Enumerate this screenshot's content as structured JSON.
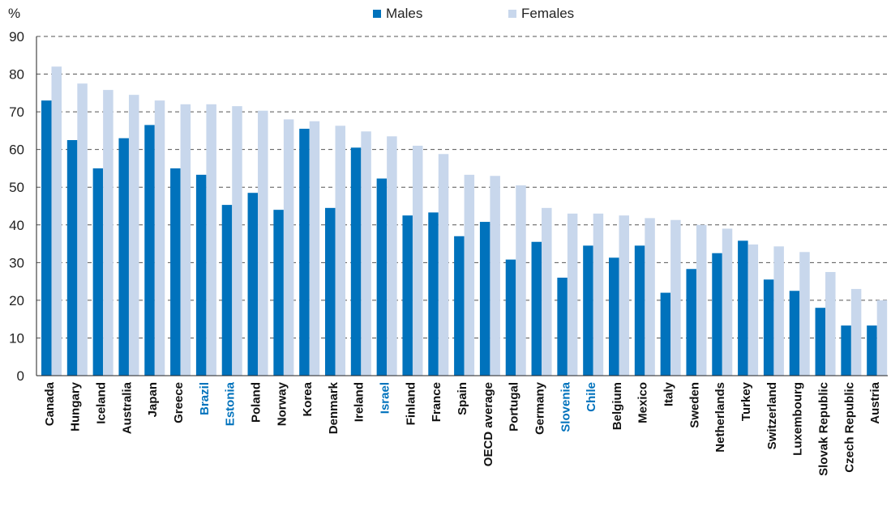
{
  "chart_data": {
    "type": "bar",
    "ylabel": "%",
    "ylim": [
      0,
      90
    ],
    "yticks": [
      0,
      10,
      20,
      30,
      40,
      50,
      60,
      70,
      80,
      90
    ],
    "grid": true,
    "legend_position": "top-center",
    "categories": [
      "Canada",
      "Hungary",
      "Iceland",
      "Australia",
      "Japan",
      "Greece",
      "Brazil",
      "Estonia",
      "Poland",
      "Norway",
      "Korea",
      "Denmark",
      "Ireland",
      "Israel",
      "Finland",
      "France",
      "Spain",
      "OECD average",
      "Portugal",
      "Germany",
      "Slovenia",
      "Chile",
      "Belgium",
      "Mexico",
      "Italy",
      "Sweden",
      "Netherlands",
      "Turkey",
      "Switzerland",
      "Luxembourg",
      "Slovak Republic",
      "Czech Republic",
      "Austria"
    ],
    "highlighted_categories": [
      "Brazil",
      "Estonia",
      "Israel",
      "Slovenia",
      "Chile"
    ],
    "series": [
      {
        "name": "Males",
        "color": "#0072bc",
        "values": [
          73,
          62.5,
          55,
          63,
          66.5,
          55,
          53.3,
          45.3,
          48.5,
          44,
          65.5,
          44.5,
          60.5,
          52.3,
          42.5,
          43.3,
          37,
          40.8,
          30.8,
          35.5,
          26,
          34.5,
          31.3,
          34.5,
          22,
          28.3,
          32.5,
          35.8,
          25.5,
          22.5,
          18,
          13.3,
          13.3
        ]
      },
      {
        "name": "Females",
        "color": "#c8d7ec",
        "values": [
          82,
          77.5,
          75.8,
          74.5,
          73,
          72,
          72,
          71.5,
          70.3,
          68,
          67.5,
          66.3,
          64.8,
          63.5,
          61,
          58.8,
          53.3,
          53,
          50.5,
          44.5,
          43,
          43,
          42.5,
          41.8,
          41.3,
          40,
          39,
          34.8,
          34.3,
          32.8,
          27.5,
          23,
          20
        ]
      }
    ],
    "colors": {
      "highlight_label": "#0072bc",
      "default_label": "#111111",
      "grid": "#555555",
      "axis": "#222222"
    }
  }
}
